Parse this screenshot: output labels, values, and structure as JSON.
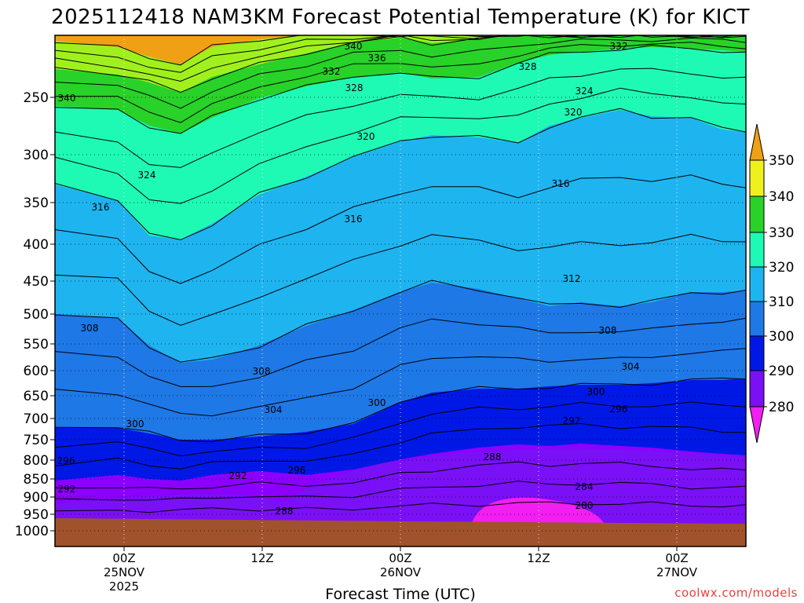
{
  "chart_data": {
    "type": "contour",
    "title": "2025112418 NAM3KM Forecast Potential Temperature (K) for KICT",
    "xlabel": "Forecast Time (UTC)",
    "ylabel": "",
    "y_scale": "log-pressure",
    "y_ticks": [
      250,
      300,
      350,
      400,
      450,
      500,
      550,
      600,
      650,
      700,
      750,
      800,
      850,
      900,
      950,
      1000
    ],
    "x_ticks": [
      {
        "line1": "00Z",
        "line2": "25NOV",
        "line3": "2025"
      },
      {
        "line1": "12Z",
        "line2": "",
        "line3": ""
      },
      {
        "line1": "00Z",
        "line2": "26NOV",
        "line3": ""
      },
      {
        "line1": "12Z",
        "line2": "",
        "line3": ""
      },
      {
        "line1": "00Z",
        "line2": "27NOV",
        "line3": ""
      }
    ],
    "colorbar": {
      "levels": [
        "280",
        "290",
        "300",
        "310",
        "320",
        "330",
        "340",
        "350"
      ],
      "colors": [
        "#f21ef2",
        "#8c00ff",
        "#6a1cf0",
        "#0012e6",
        "#1e78e6",
        "#1eb4f0",
        "#1efaaa",
        "#2ad228",
        "#a0f01e",
        "#f0f01e",
        "#f0a014"
      ]
    },
    "contour_labels": [
      {
        "text": "340"
      },
      {
        "text": "336"
      },
      {
        "text": "332"
      },
      {
        "text": "332"
      },
      {
        "text": "328"
      },
      {
        "text": "328"
      },
      {
        "text": "340"
      },
      {
        "text": "324"
      },
      {
        "text": "320"
      },
      {
        "text": "320"
      },
      {
        "text": "324"
      },
      {
        "text": "316"
      },
      {
        "text": "316"
      },
      {
        "text": "316"
      },
      {
        "text": "312"
      },
      {
        "text": "308"
      },
      {
        "text": "308"
      },
      {
        "text": "308"
      },
      {
        "text": "304"
      },
      {
        "text": "304"
      },
      {
        "text": "300"
      },
      {
        "text": "300"
      },
      {
        "text": "300"
      },
      {
        "text": "296"
      },
      {
        "text": "292"
      },
      {
        "text": "296"
      },
      {
        "text": "296"
      },
      {
        "text": "292"
      },
      {
        "text": "292"
      },
      {
        "text": "288"
      },
      {
        "text": "288"
      },
      {
        "text": "284"
      },
      {
        "text": "280"
      }
    ],
    "grid": "dotted",
    "credit": "coolwx.com/models"
  }
}
